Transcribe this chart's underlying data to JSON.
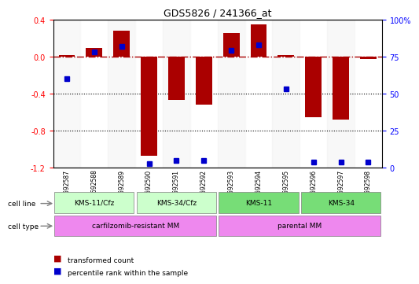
{
  "title": "GDS5826 / 241366_at",
  "samples": [
    "GSM1692587",
    "GSM1692588",
    "GSM1692589",
    "GSM1692590",
    "GSM1692591",
    "GSM1692592",
    "GSM1692593",
    "GSM1692594",
    "GSM1692595",
    "GSM1692596",
    "GSM1692597",
    "GSM1692598"
  ],
  "transformed_count": [
    0.02,
    0.09,
    0.28,
    -1.07,
    -0.47,
    -0.52,
    0.25,
    0.35,
    0.02,
    -0.65,
    -0.68,
    -0.03
  ],
  "percentile_rank": [
    60,
    78,
    82,
    3,
    5,
    5,
    79,
    83,
    53,
    4,
    4,
    4
  ],
  "cell_line_groups": [
    {
      "label": "KMS-11/Cfz",
      "start": 0,
      "end": 3,
      "color": "#aaffaa"
    },
    {
      "label": "KMS-34/Cfz",
      "start": 3,
      "end": 6,
      "color": "#aaffaa"
    },
    {
      "label": "KMS-11",
      "start": 6,
      "end": 9,
      "color": "#55dd55"
    },
    {
      "label": "KMS-34",
      "start": 9,
      "end": 12,
      "color": "#55dd55"
    }
  ],
  "cell_type_groups": [
    {
      "label": "carfilzomib-resistant MM",
      "start": 0,
      "end": 6,
      "color": "#ff88ff"
    },
    {
      "label": "parental MM",
      "start": 6,
      "end": 12,
      "color": "#ff88ff"
    }
  ],
  "bar_color": "#aa0000",
  "dot_color": "#0000cc",
  "left_ylim": [
    -1.2,
    0.4
  ],
  "right_ylim": [
    0,
    100
  ],
  "left_yticks": [
    -1.2,
    -0.8,
    -0.4,
    0.0,
    0.4
  ],
  "right_yticks": [
    0,
    25,
    50,
    75,
    100
  ],
  "right_yticklabels": [
    "0",
    "25",
    "50",
    "75",
    "100%"
  ],
  "hline_y": 0.0,
  "dotted_hlines": [
    -0.4,
    -0.8
  ],
  "cell_line_colors": [
    "#ccffcc",
    "#ccffcc",
    "#55cc55",
    "#55cc55"
  ],
  "cell_type_colors": [
    "#ee88ee",
    "#ee88ee"
  ]
}
